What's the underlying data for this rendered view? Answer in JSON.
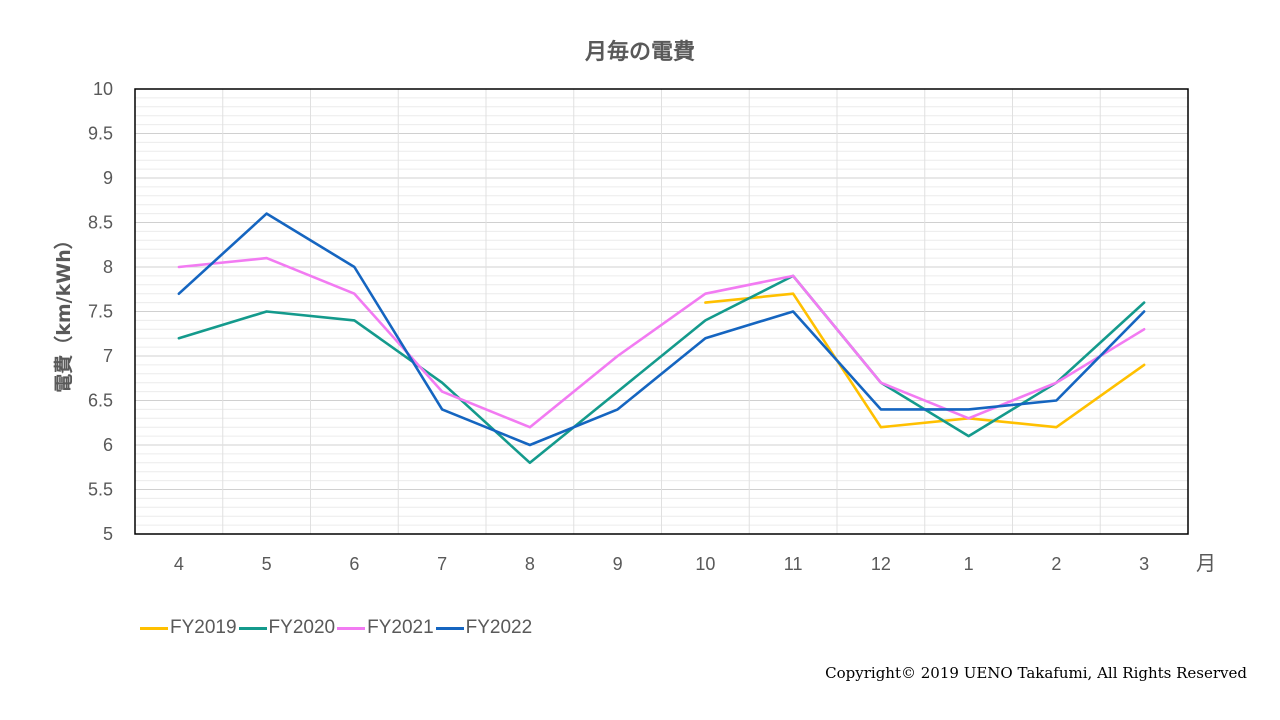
{
  "chart_data": {
    "type": "line",
    "title": "月毎の電費",
    "ylabel": "電費（km/kWh）",
    "xunit": "月",
    "categories": [
      "4",
      "5",
      "6",
      "7",
      "8",
      "9",
      "10",
      "11",
      "12",
      "1",
      "2",
      "3"
    ],
    "ylim": [
      5,
      10
    ],
    "yticks": [
      "5",
      "5.5",
      "6",
      "6.5",
      "7",
      "7.5",
      "8",
      "8.5",
      "9",
      "9.5",
      "10"
    ],
    "grid": true,
    "legend_position": "bottom-left",
    "series": [
      {
        "name": "FY2019",
        "color": "#FFC000",
        "values": [
          null,
          null,
          null,
          null,
          null,
          null,
          7.6,
          7.7,
          6.2,
          6.3,
          6.2,
          6.9
        ]
      },
      {
        "name": "FY2020",
        "color": "#149A8C",
        "values": [
          7.2,
          7.5,
          7.4,
          6.7,
          5.8,
          6.6,
          7.4,
          7.9,
          6.7,
          6.1,
          6.7,
          7.6
        ]
      },
      {
        "name": "FY2021",
        "color": "#F27BF2",
        "values": [
          8.0,
          8.1,
          7.7,
          6.6,
          6.2,
          7.0,
          7.7,
          7.9,
          6.7,
          6.3,
          6.7,
          7.3
        ]
      },
      {
        "name": "FY2022",
        "color": "#1565C0",
        "values": [
          7.7,
          8.6,
          8.0,
          6.4,
          6.0,
          6.4,
          7.2,
          7.5,
          6.4,
          6.4,
          6.5,
          7.5
        ]
      }
    ]
  },
  "copyright": "Copyright© 2019 UENO Takafumi, All Rights Reserved"
}
